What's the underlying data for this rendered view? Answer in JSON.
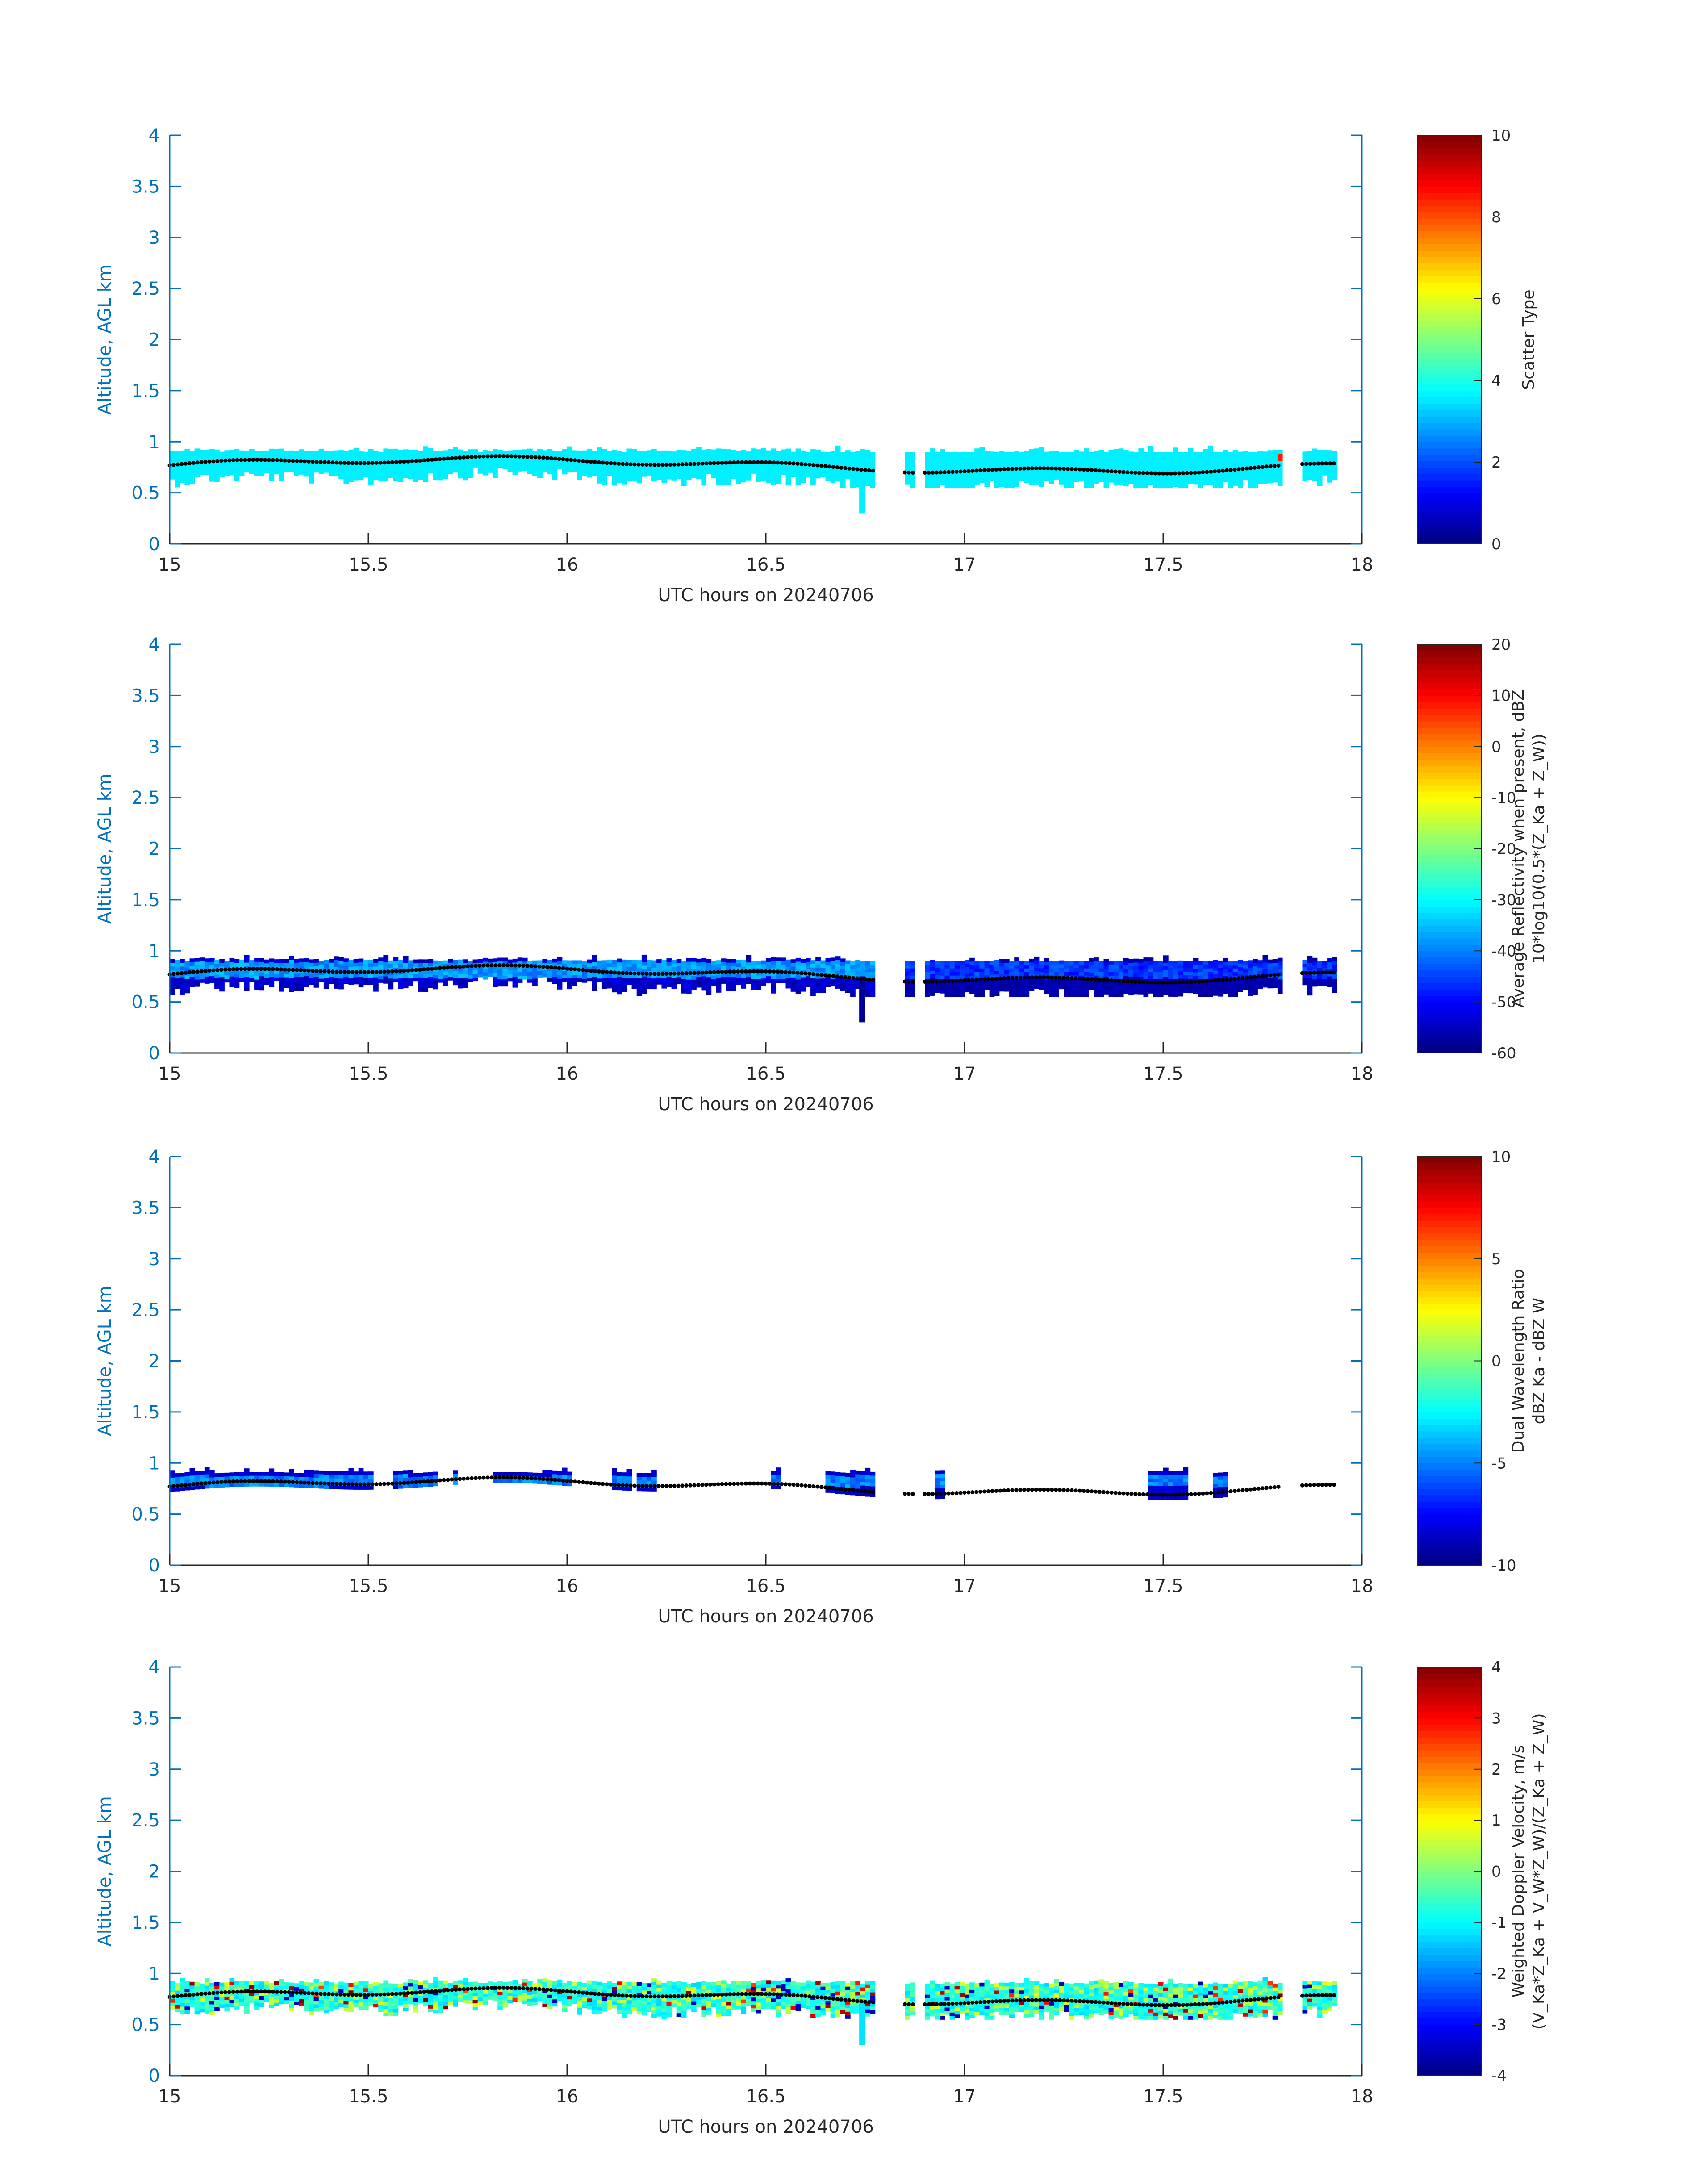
{
  "chart_data": [
    {
      "type": "heatmap",
      "xlabel": "UTC hours on 20240706",
      "ylabel": "Altitude, AGL km",
      "xlim": [
        15,
        18
      ],
      "ylim": [
        0,
        4
      ],
      "xticks": [
        "15",
        "15.5",
        "16",
        "16.5",
        "17",
        "17.5",
        "18"
      ],
      "yticks": [
        "0",
        "0.5",
        "1",
        "1.5",
        "2",
        "2.5",
        "3",
        "3.5",
        "4"
      ],
      "colorbar": {
        "label_lines": [
          "Scatter Type"
        ],
        "ticks": [
          "0",
          "2",
          "4",
          "6",
          "8",
          "10"
        ],
        "range": [
          0,
          10
        ]
      },
      "field": "scatter",
      "description_values": {
        "dominant_value": 3.5,
        "outlier_value": 8.5,
        "outlier_time": 17.8
      }
    },
    {
      "type": "heatmap",
      "xlabel": "UTC hours on 20240706",
      "ylabel": "Altitude, AGL km",
      "xlim": [
        15,
        18
      ],
      "ylim": [
        0,
        4
      ],
      "xticks": [
        "15",
        "15.5",
        "16",
        "16.5",
        "17",
        "17.5",
        "18"
      ],
      "yticks": [
        "0",
        "0.5",
        "1",
        "1.5",
        "2",
        "2.5",
        "3",
        "3.5",
        "4"
      ],
      "colorbar": {
        "label_lines": [
          "Average Reflectivity when present, dBZ",
          "10*log10(0.5*(Z_Ka + Z_W))"
        ],
        "ticks": [
          "-60",
          "-50",
          "-40",
          "-30",
          "-20",
          "-10",
          "0",
          "10",
          "20"
        ],
        "range": [
          -60,
          20
        ]
      },
      "field": "refl"
    },
    {
      "type": "heatmap",
      "xlabel": "UTC hours on 20240706",
      "ylabel": "Altitude, AGL km",
      "xlim": [
        15,
        18
      ],
      "ylim": [
        0,
        4
      ],
      "xticks": [
        "15",
        "15.5",
        "16",
        "16.5",
        "17",
        "17.5",
        "18"
      ],
      "yticks": [
        "0",
        "0.5",
        "1",
        "1.5",
        "2",
        "2.5",
        "3",
        "3.5",
        "4"
      ],
      "colorbar": {
        "label_lines": [
          "Dual Wavelength Ratio",
          "dBZ Ka - dBZ W"
        ],
        "ticks": [
          "-10",
          "-5",
          "0",
          "5",
          "10"
        ],
        "range": [
          -10,
          10
        ]
      },
      "field": "dwr"
    },
    {
      "type": "heatmap",
      "xlabel": "UTC hours on 20240706",
      "ylabel": "Altitude, AGL km",
      "xlim": [
        15,
        18
      ],
      "ylim": [
        0,
        4
      ],
      "xticks": [
        "15",
        "15.5",
        "16",
        "16.5",
        "17",
        "17.5",
        "18"
      ],
      "yticks": [
        "0",
        "0.5",
        "1",
        "1.5",
        "2",
        "2.5",
        "3",
        "3.5",
        "4"
      ],
      "colorbar": {
        "label_lines": [
          "Weighted Doppler Velocity, m/s",
          "(V_Ka*Z_Ka + V_W*Z_W)/(Z_Ka + Z_W)"
        ],
        "ticks": [
          "-4",
          "-3",
          "-2",
          "-1",
          "0",
          "1",
          "2",
          "3",
          "4"
        ],
        "range": [
          -4,
          4
        ]
      },
      "field": "vel"
    }
  ],
  "cloud_base_dots": {
    "segments": [
      [
        15.0,
        16.78
      ],
      [
        16.85,
        16.88
      ],
      [
        16.9,
        17.8
      ],
      [
        17.85,
        17.94
      ]
    ],
    "baseline_km": 0.78
  },
  "colors": {
    "axis_blue": "#0072bd",
    "dots": "#000000",
    "text": "#262626"
  }
}
